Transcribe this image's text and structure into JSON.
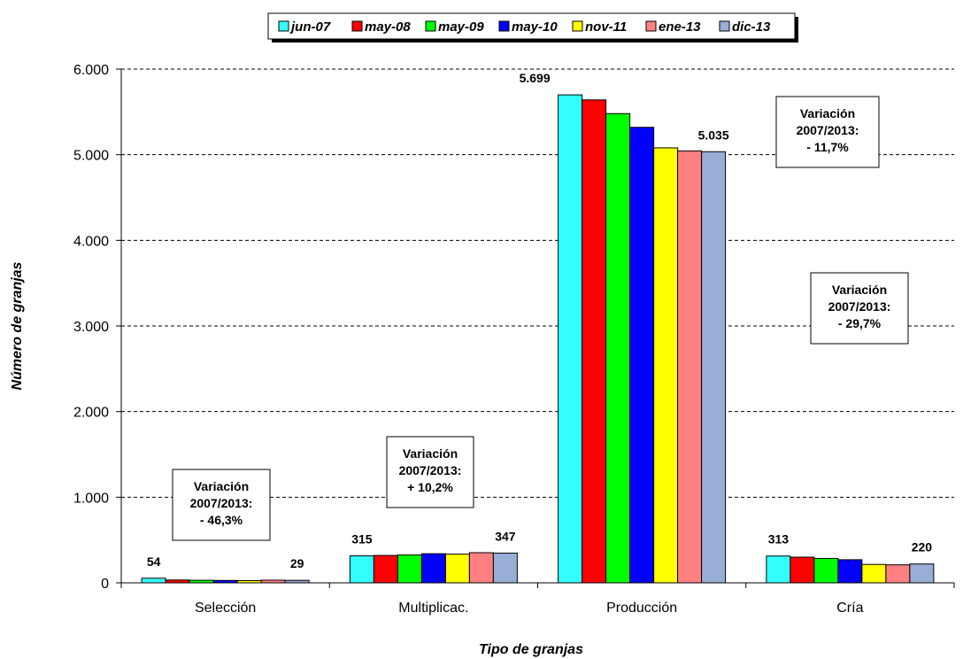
{
  "chart_data": {
    "type": "bar",
    "xlabel": "Tipo de granjas",
    "ylabel": "Número de granjas",
    "ylim": [
      0,
      6000
    ],
    "yticks": [
      0,
      1000,
      2000,
      3000,
      4000,
      5000,
      6000
    ],
    "ytick_labels": [
      "0",
      "1.000",
      "2.000",
      "3.000",
      "4.000",
      "5.000",
      "6.000"
    ],
    "grid": "horizontal-dashed",
    "legend_position": "top-center",
    "categories": [
      "Selección",
      "Multiplicac.",
      "Producción",
      "Cría"
    ],
    "series": [
      {
        "name": "jun-07",
        "color": "#33ffff",
        "values": [
          54,
          315,
          5699,
          313
        ]
      },
      {
        "name": "may-08",
        "color": "#ff0000",
        "values": [
          33,
          320,
          5640,
          300
        ]
      },
      {
        "name": "may-09",
        "color": "#00ff00",
        "values": [
          30,
          325,
          5480,
          285
        ]
      },
      {
        "name": "may-10",
        "color": "#0000ff",
        "values": [
          28,
          340,
          5320,
          270
        ]
      },
      {
        "name": "nov-11",
        "color": "#ffff00",
        "values": [
          26,
          335,
          5080,
          215
        ]
      },
      {
        "name": "ene-13",
        "color": "#ff8080",
        "values": [
          31,
          352,
          5045,
          210
        ]
      },
      {
        "name": "dic-13",
        "color": "#99aed6",
        "values": [
          29,
          347,
          5035,
          220
        ]
      }
    ],
    "data_labels": [
      {
        "category": 0,
        "series": 0,
        "text": "54"
      },
      {
        "category": 0,
        "series": 6,
        "text": "29"
      },
      {
        "category": 1,
        "series": 0,
        "text": "315"
      },
      {
        "category": 1,
        "series": 6,
        "text": "347"
      },
      {
        "category": 2,
        "series": 0,
        "text": "5.699"
      },
      {
        "category": 2,
        "series": 6,
        "text": "5.035"
      },
      {
        "category": 3,
        "series": 0,
        "text": "313"
      },
      {
        "category": 3,
        "series": 6,
        "text": "220"
      }
    ],
    "annotations": [
      {
        "category": 0,
        "lines": [
          "Variación",
          "2007/2013:",
          "- 46,3%"
        ]
      },
      {
        "category": 1,
        "lines": [
          "Variación",
          "2007/2013:",
          "+ 10,2%"
        ]
      },
      {
        "category": 2,
        "lines": [
          "Variación",
          "2007/2013:",
          "- 11,7%"
        ]
      },
      {
        "category": 3,
        "lines": [
          "Variación",
          "2007/2013:",
          "- 29,7%"
        ]
      }
    ]
  }
}
